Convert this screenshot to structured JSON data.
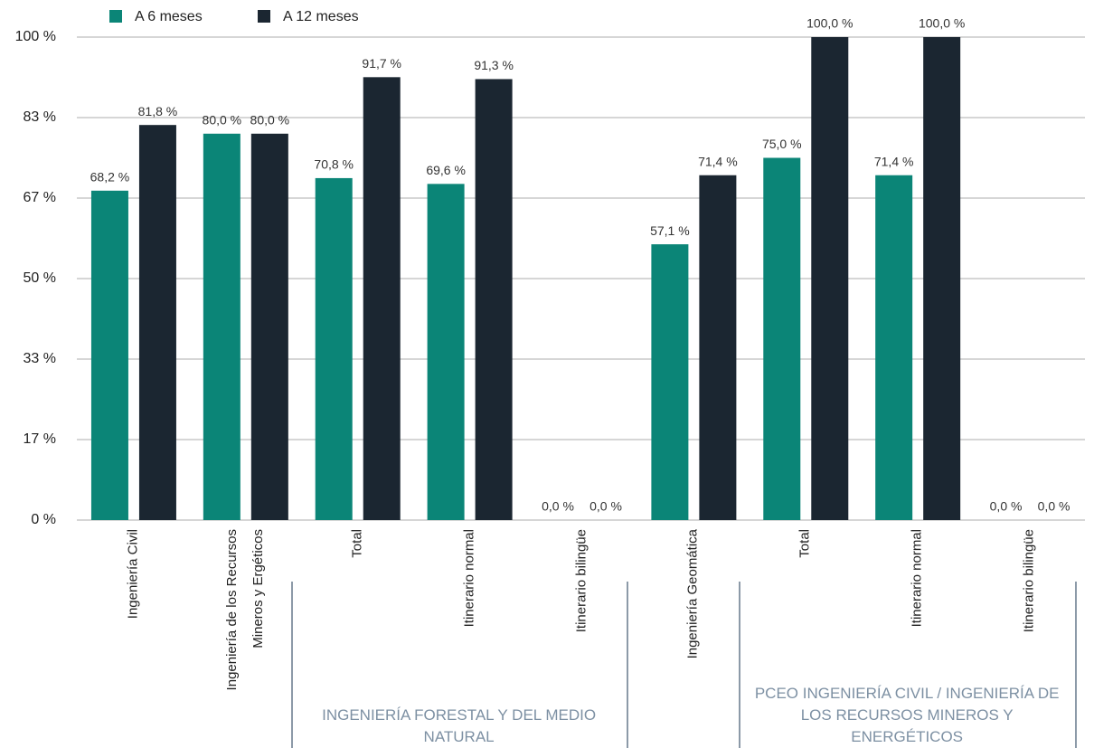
{
  "chart_data": {
    "type": "bar",
    "categories": [
      "Ingeniería Civil",
      "Ingeniería de los Recursos Mineros y Ergéticos",
      "Total",
      "Itinerario normal",
      "Itinerario bilingüe",
      "Ingeniería Geomática",
      "Total",
      "Itinerario normal",
      "Itinerario bilingüe"
    ],
    "groups": [
      {
        "label": "INGENIERÍA FORESTAL Y DEL MEDIO NATURAL",
        "from": 2,
        "to": 4
      },
      {
        "label": "PCEO INGENIERÍA CIVIL / INGENIERÍA DE LOS RECURSOS MINEROS Y ENERGÉTICOS",
        "from": 6,
        "to": 8
      }
    ],
    "series": [
      {
        "name": "A 6 meses",
        "color": "#0b8577",
        "values": [
          68.2,
          80.0,
          70.8,
          69.6,
          0.0,
          57.1,
          75.0,
          71.4,
          0.0
        ],
        "value_labels": [
          "68,2 %",
          "80,0 %",
          "70,8 %",
          "69,6 %",
          "0,0 %",
          "57,1 %",
          "75,0 %",
          "71,4 %",
          "0,0 %"
        ]
      },
      {
        "name": "A 12 meses",
        "color": "#1b2631",
        "values": [
          81.8,
          80.0,
          91.7,
          91.3,
          0.0,
          71.4,
          100.0,
          100.0,
          0.0
        ],
        "value_labels": [
          "81,8 %",
          "80,0 %",
          "91,7 %",
          "91,3 %",
          "0,0 %",
          "71,4 %",
          "100,0 %",
          "100,0 %",
          "0,0 %"
        ]
      }
    ],
    "ylim": [
      0,
      100
    ],
    "yticks": [
      {
        "value": 0,
        "label": "0 %"
      },
      {
        "value": 16.67,
        "label": "17 %"
      },
      {
        "value": 33.33,
        "label": "33 %"
      },
      {
        "value": 50,
        "label": "50 %"
      },
      {
        "value": 66.67,
        "label": "67 %"
      },
      {
        "value": 83.33,
        "label": "83 %"
      },
      {
        "value": 100,
        "label": "100 %"
      }
    ],
    "grid": true,
    "legend": "top-left"
  }
}
